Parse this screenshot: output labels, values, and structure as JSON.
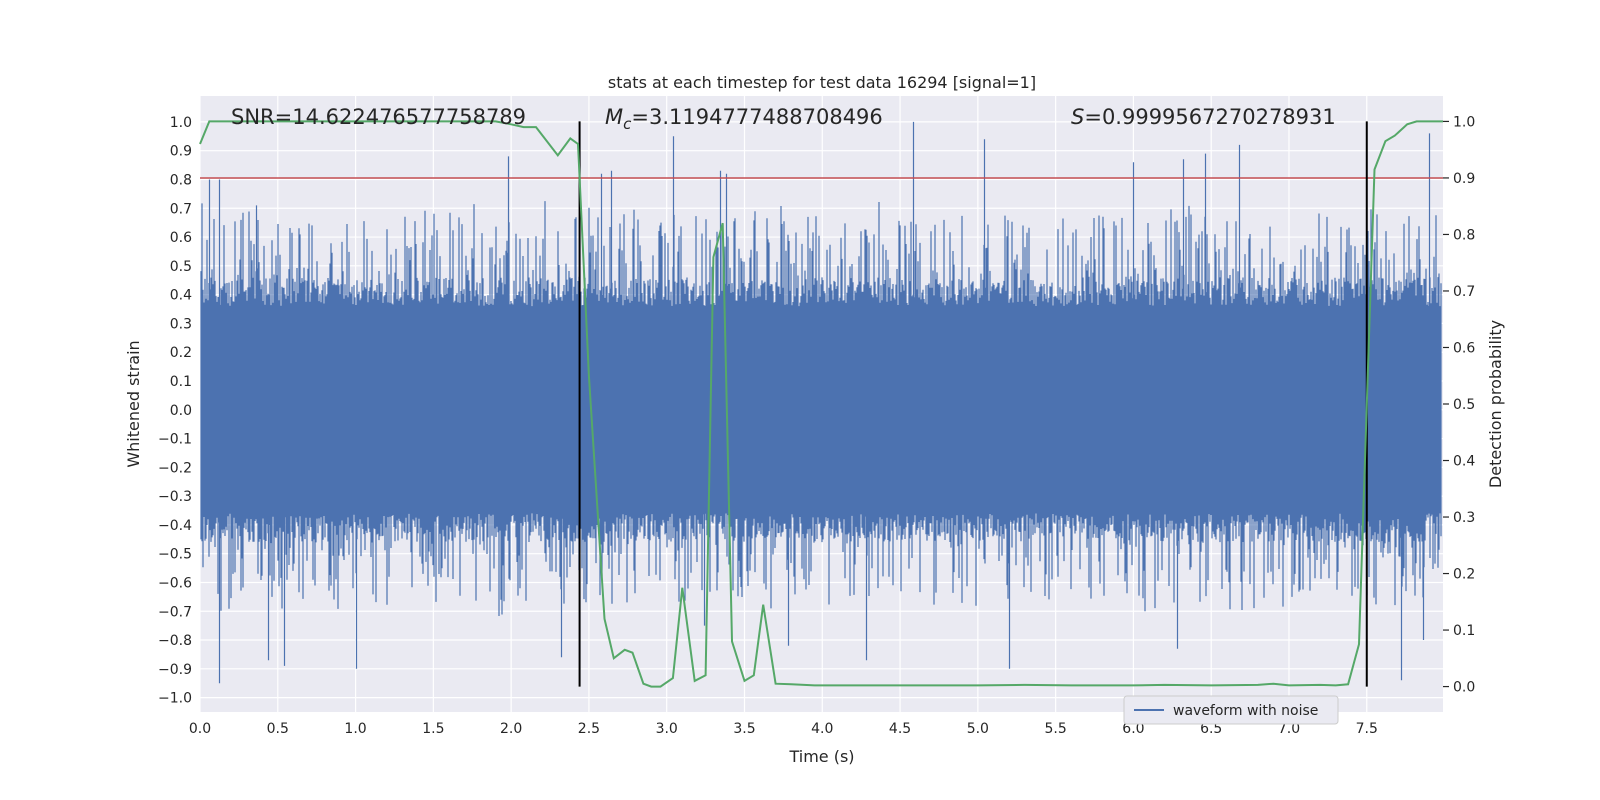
{
  "chart_data": {
    "type": "line",
    "title": "stats at each timestep for test data 16294 [signal=1]",
    "xlabel": "Time (s)",
    "ylabel": "Whitened strain",
    "ylabel_right": "Detection probability",
    "xlim": [
      0.0,
      7.99
    ],
    "ylim": [
      -1.05,
      1.09
    ],
    "ylim_right": [
      -0.045,
      1.045
    ],
    "x_ticks": [
      "0.0",
      "0.5",
      "1.0",
      "1.5",
      "2.0",
      "2.5",
      "3.0",
      "3.5",
      "4.0",
      "4.5",
      "5.0",
      "5.5",
      "6.0",
      "6.5",
      "7.0",
      "7.5"
    ],
    "y_ticks": [
      "1.0",
      "0.9",
      "0.8",
      "0.7",
      "0.6",
      "0.5",
      "0.4",
      "0.3",
      "0.2",
      "0.1",
      "0.0",
      "−0.1",
      "−0.2",
      "−0.3",
      "−0.4",
      "−0.5",
      "−0.6",
      "−0.7",
      "−0.8",
      "−0.9",
      "−1.0"
    ],
    "y_ticks_right": [
      "1.0",
      "0.9",
      "0.8",
      "0.7",
      "0.6",
      "0.5",
      "0.4",
      "0.3",
      "0.2",
      "0.1",
      "0.0"
    ],
    "grid": true,
    "annotations": {
      "snr": "SNR=14.622476577758789",
      "mc_symbol": "M",
      "mc_sub": "c",
      "mc_value": "=3.1194777488708496",
      "s_symbol": "S",
      "s_value": "=0.9999567270278931"
    },
    "threshold": {
      "value": 0.9,
      "axis": "right",
      "color": "#c44e52"
    },
    "vertical_lines": [
      2.44,
      7.5
    ],
    "legend": {
      "label": "waveform with noise",
      "location": "lower-right"
    },
    "series": [
      {
        "name": "waveform with noise",
        "axis": "left",
        "color": "#4c72b0",
        "style": "dense noise, envelope approx ±0.4 with spikes to ±1.0",
        "spikes": [
          [
            0.06,
            0.8
          ],
          [
            0.12,
            0.8
          ],
          [
            0.36,
            0.71
          ],
          [
            1.98,
            0.88
          ],
          [
            2.58,
            0.82
          ],
          [
            2.64,
            0.83
          ],
          [
            3.04,
            0.95
          ],
          [
            3.34,
            0.83
          ],
          [
            3.38,
            0.82
          ],
          [
            4.58,
            1.0
          ],
          [
            5.04,
            0.94
          ],
          [
            6.0,
            0.86
          ],
          [
            6.32,
            0.87
          ],
          [
            6.46,
            0.89
          ],
          [
            6.68,
            0.92
          ],
          [
            7.9,
            0.96
          ],
          [
            0.12,
            -0.95
          ],
          [
            0.44,
            -0.87
          ],
          [
            0.54,
            -0.89
          ],
          [
            1.0,
            -0.9
          ],
          [
            2.32,
            -0.86
          ],
          [
            3.24,
            -0.75
          ],
          [
            3.78,
            -0.82
          ],
          [
            4.28,
            -0.87
          ],
          [
            5.2,
            -0.9
          ],
          [
            6.28,
            -0.83
          ],
          [
            7.72,
            -0.94
          ],
          [
            7.86,
            -0.8
          ]
        ]
      },
      {
        "name": "detection probability",
        "axis": "right",
        "color": "#55a868",
        "x": [
          0.0,
          0.06,
          0.2,
          0.5,
          1.0,
          1.5,
          1.9,
          2.0,
          2.08,
          2.16,
          2.3,
          2.38,
          2.43,
          2.5,
          2.6,
          2.66,
          2.73,
          2.78,
          2.85,
          2.9,
          2.96,
          3.04,
          3.1,
          3.18,
          3.25,
          3.3,
          3.36,
          3.42,
          3.5,
          3.56,
          3.62,
          3.7,
          3.8,
          3.95,
          4.2,
          4.6,
          5.0,
          5.3,
          5.6,
          6.0,
          6.2,
          6.5,
          6.8,
          6.9,
          7.0,
          7.2,
          7.3,
          7.38,
          7.45,
          7.5,
          7.55,
          7.62,
          7.68,
          7.76,
          7.82,
          7.9,
          7.99
        ],
        "y": [
          0.96,
          1.0,
          1.0,
          1.0,
          1.0,
          1.0,
          1.0,
          0.995,
          0.99,
          0.99,
          0.94,
          0.97,
          0.96,
          0.55,
          0.12,
          0.05,
          0.065,
          0.06,
          0.005,
          0.0,
          0.0,
          0.015,
          0.175,
          0.01,
          0.02,
          0.76,
          0.82,
          0.08,
          0.01,
          0.02,
          0.145,
          0.005,
          0.004,
          0.002,
          0.002,
          0.002,
          0.002,
          0.003,
          0.002,
          0.002,
          0.003,
          0.002,
          0.003,
          0.005,
          0.002,
          0.003,
          0.002,
          0.004,
          0.075,
          0.5,
          0.915,
          0.965,
          0.975,
          0.995,
          1.0,
          1.0,
          1.0
        ]
      }
    ]
  }
}
